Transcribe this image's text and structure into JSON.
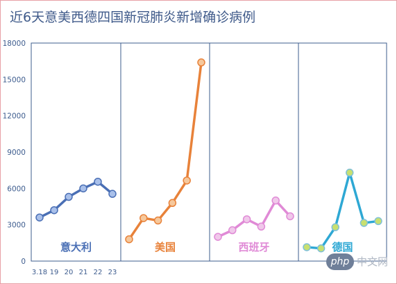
{
  "chart_data": {
    "type": "line",
    "title": "近6天意美西德四国新冠肺炎新增确诊病例",
    "ylim": [
      0,
      18000
    ],
    "yticks": [
      "18000",
      "15000",
      "12000",
      "9000",
      "6000",
      "3000",
      "0"
    ],
    "ytick_values": [
      18000,
      15000,
      12000,
      9000,
      6000,
      3000,
      0
    ],
    "xtick_labels": [
      "3.18",
      "19",
      "20",
      "21",
      "22",
      "23"
    ],
    "grid": false,
    "series": [
      {
        "name": "意大利",
        "color": "#4a6fb5",
        "marker_fill": "#a9c0ea",
        "marker_stroke": "#4a6fb5",
        "values": [
          3600,
          4200,
          5300,
          6000,
          6550,
          5550
        ]
      },
      {
        "name": "美国",
        "color": "#e8823a",
        "marker_fill": "#f6c89c",
        "marker_stroke": "#e8823a",
        "values": [
          1800,
          3550,
          3350,
          4800,
          6650,
          16400
        ]
      },
      {
        "name": "西班牙",
        "color": "#e08ad6",
        "marker_fill": "#f0c8ea",
        "marker_stroke": "#e08ad6",
        "values": [
          2000,
          2550,
          3450,
          2850,
          5000,
          3700
        ]
      },
      {
        "name": "德国",
        "color": "#2ea8d4",
        "marker_fill": "#c8e070",
        "marker_stroke": "#7fc0d8",
        "values": [
          1150,
          1050,
          2800,
          7300,
          3150,
          3300
        ]
      }
    ]
  },
  "watermark": {
    "badge": "php",
    "text": "中文网"
  }
}
